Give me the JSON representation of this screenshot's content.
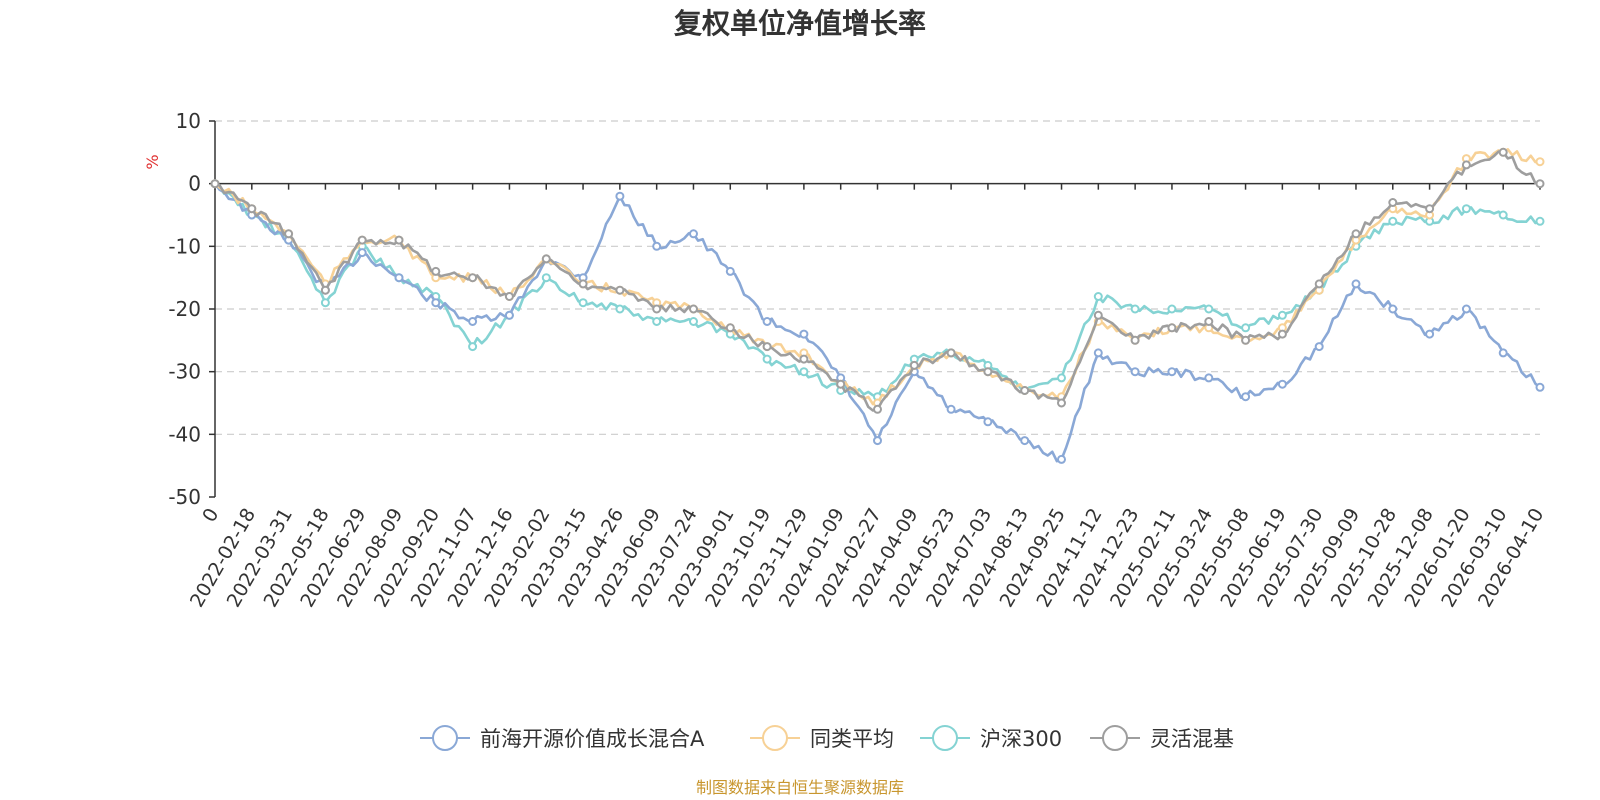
{
  "chart_data": {
    "type": "line",
    "title": "复权单位净值增长率",
    "ylabel": "%",
    "ylim": [
      -50,
      10
    ],
    "yticks": [
      10,
      0,
      -10,
      -20,
      -30,
      -40,
      -50
    ],
    "grid": true,
    "legend_position": "bottom",
    "source": "制图数据来自恒生聚源数据库",
    "categories": [
      "0",
      "2022-02-18",
      "2022-03-31",
      "2022-05-18",
      "2022-06-29",
      "2022-08-09",
      "2022-09-20",
      "2022-11-07",
      "2022-12-16",
      "2023-02-02",
      "2023-03-15",
      "2023-04-26",
      "2023-06-09",
      "2023-07-24",
      "2023-09-01",
      "2023-10-19",
      "2023-11-29",
      "2024-01-09",
      "2024-02-27",
      "2024-04-09",
      "2024-05-23",
      "2024-07-03",
      "2024-08-13",
      "2024-09-25",
      "2024-11-12",
      "2024-12-23",
      "2025-02-11",
      "2025-03-24",
      "2025-05-08",
      "2025-06-19",
      "2025-07-30",
      "2025-09-09",
      "2025-10-28",
      "2025-12-08",
      "2026-01-20",
      "2026-03-10",
      "2026-04-10"
    ],
    "series": [
      {
        "name": "前海开源价值成长混合A",
        "color": "#8aa8d6",
        "values": [
          0,
          -5,
          -9,
          -17,
          -11,
          -15,
          -19,
          -22,
          -21,
          -12,
          -15,
          -2,
          -10,
          -8,
          -14,
          -22,
          -24,
          -31,
          -41,
          -30,
          -36,
          -38,
          -41,
          -44,
          -27,
          -30,
          -30,
          -31,
          -34,
          -32,
          -26,
          -16,
          -20,
          -24,
          -20,
          -27,
          -32.5
        ]
      },
      {
        "name": "同类平均",
        "color": "#f7d196",
        "values": [
          0,
          -4,
          -8,
          -16,
          -9,
          -9,
          -15,
          -15,
          -18,
          -12,
          -16,
          -17,
          -19,
          -20,
          -23,
          -26,
          -27,
          -32,
          -35,
          -29,
          -27,
          -30,
          -33,
          -34,
          -22,
          -25,
          -23,
          -23,
          -25,
          -23,
          -17,
          -9,
          -4,
          -5,
          4,
          5,
          3.5
        ]
      },
      {
        "name": "沪深300",
        "color": "#84d3d3",
        "values": [
          0,
          -5,
          -9,
          -19,
          -10,
          -15,
          -18,
          -26,
          -21,
          -15,
          -19,
          -20,
          -22,
          -22,
          -24,
          -28,
          -30,
          -33,
          -34,
          -28,
          -27,
          -29,
          -33,
          -31,
          -18,
          -20,
          -20,
          -20,
          -23,
          -21,
          -17,
          -10,
          -6,
          -6,
          -4,
          -5,
          -6
        ]
      },
      {
        "name": "灵活混基",
        "color": "#9e9e9e",
        "values": [
          0,
          -4,
          -8,
          -17,
          -9,
          -9,
          -14,
          -15,
          -18,
          -12,
          -16,
          -17,
          -20,
          -20,
          -23,
          -26,
          -28,
          -32,
          -36,
          -29,
          -27,
          -30,
          -33,
          -35,
          -21,
          -25,
          -23,
          -22,
          -25,
          -24,
          -16,
          -8,
          -3,
          -4,
          3,
          5,
          0
        ]
      }
    ]
  }
}
